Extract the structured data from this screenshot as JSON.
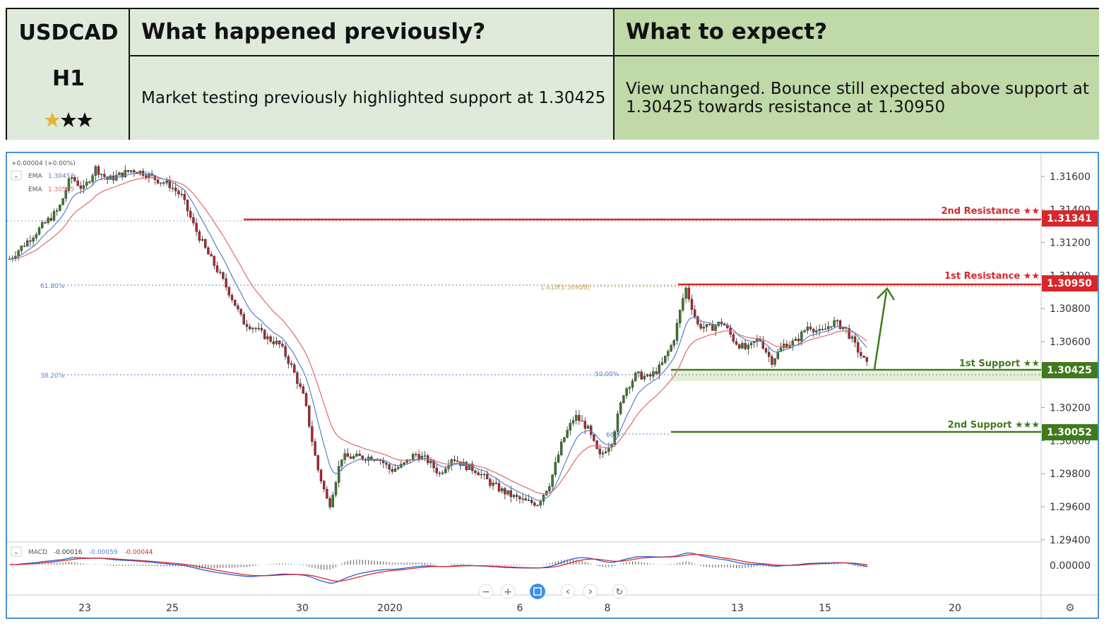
{
  "header": {
    "symbol": "USDCAD",
    "timeframe": "H1",
    "prev_title": "What happened previously?",
    "prev_text": "Market testing previously highlighted support at 1.30425",
    "expect_title": "What to expect?",
    "expect_text_1": "View unchanged. Bounce still expected above support at",
    "expect_text_2": "1.30425 towards resistance at 1.30950",
    "star_rating": 1,
    "star_count": 3
  },
  "legend": {
    "change": "+0.00004 (+0.00%)",
    "ema1_label": "EMA",
    "ema1_value": "1.30452",
    "ema2_label": "EMA",
    "ema2_value": "1.30505",
    "macd_label": "MACD",
    "macd_v1": "-0.00016",
    "macd_v2": "-0.00059",
    "macd_v3": "-0.00044"
  },
  "levels": {
    "res2_label": "2nd Resistance ★★",
    "res2_value": "1.31341",
    "res1_label": "1st Resistance ★★",
    "res1_value": "1.30950",
    "sup1_label": "1st Support ★★",
    "sup1_value": "1.30425",
    "sup2_label": "2nd Support ★★★",
    "sup2_value": "1.30052"
  },
  "fib": {
    "f618": "61.80%",
    "f382": "38.20%",
    "f50": "50.00%",
    "f1618": "1.618(1.30928)",
    "f_low": "60%"
  },
  "controls": {
    "minus": "−",
    "plus": "+",
    "left": "‹",
    "right": "›",
    "reset": "↻",
    "settings": "⚙"
  },
  "macd_axis_label": "0.00000",
  "colors": {
    "resistance": "#d9262b",
    "support": "#3f7a1e",
    "ema_fast": "#5b7fc8",
    "ema_slow": "#e06a6a",
    "fib_blue": "#5b7fc8",
    "fib_gold": "#c8a24a",
    "header_left": "#dfeadb",
    "header_right": "#bfd9a8"
  },
  "chart_data": {
    "type": "line",
    "title": "",
    "y_ticks": [
      "1.31600",
      "1.31400",
      "1.31200",
      "1.31000",
      "1.30800",
      "1.30600",
      "1.30400",
      "1.30200",
      "1.30000",
      "1.29800",
      "1.29600",
      "1.29400"
    ],
    "x_ticks": [
      "23",
      "25",
      "30",
      "2020",
      "6",
      "8",
      "13",
      "15",
      "20"
    ],
    "ylim": [
      1.294,
      1.317
    ],
    "grid": false,
    "series": [
      {
        "values": [
          [
            0,
            1.311
          ],
          [
            2,
            1.3125
          ],
          [
            4,
            1.314
          ],
          [
            5,
            1.316
          ],
          [
            6,
            1.3152
          ],
          [
            7,
            1.3165
          ],
          [
            8,
            1.3158
          ],
          [
            10,
            1.3164
          ],
          [
            11,
            1.3162
          ],
          [
            12,
            1.3158
          ],
          [
            13,
            1.3155
          ],
          [
            14,
            1.3148
          ],
          [
            15,
            1.313
          ],
          [
            16,
            1.3115
          ],
          [
            17,
            1.3102
          ],
          [
            18,
            1.3088
          ],
          [
            19,
            1.3072
          ],
          [
            20,
            1.3068
          ],
          [
            21,
            1.3062
          ],
          [
            22,
            1.3058
          ],
          [
            23,
            1.3044
          ],
          [
            24,
            1.3025
          ],
          [
            25,
            1.2985
          ],
          [
            26,
            1.296
          ],
          [
            27,
            1.299
          ],
          [
            30,
            1.299
          ],
          [
            31,
            1.2982
          ],
          [
            32,
            1.2985
          ],
          [
            33,
            1.2992
          ],
          [
            34,
            1.2988
          ],
          [
            35,
            1.298
          ],
          [
            36,
            1.299
          ],
          [
            37,
            1.2985
          ],
          [
            38,
            1.2982
          ],
          [
            39,
            1.2975
          ],
          [
            40,
            1.297
          ],
          [
            41,
            1.2966
          ],
          [
            42,
            1.2963
          ],
          [
            43,
            1.2962
          ],
          [
            44,
            1.2975
          ],
          [
            45,
            1.3
          ],
          [
            46,
            1.3015
          ],
          [
            47,
            1.3008
          ],
          [
            48,
            1.299
          ],
          [
            49,
            1.3
          ],
          [
            50,
            1.303
          ],
          [
            51,
            1.304
          ],
          [
            52,
            1.3038
          ],
          [
            53,
            1.3045
          ],
          [
            54,
            1.306
          ],
          [
            55,
            1.3093
          ],
          [
            56,
            1.307
          ],
          [
            57,
            1.3068
          ],
          [
            58,
            1.3072
          ],
          [
            59,
            1.306
          ],
          [
            60,
            1.3055
          ],
          [
            61,
            1.3062
          ],
          [
            62,
            1.3048
          ],
          [
            63,
            1.3058
          ],
          [
            64,
            1.306
          ],
          [
            65,
            1.307
          ],
          [
            66,
            1.3065
          ],
          [
            67,
            1.3072
          ],
          [
            68,
            1.3068
          ],
          [
            69,
            1.3055
          ],
          [
            70,
            1.3043
          ]
        ]
      }
    ]
  }
}
